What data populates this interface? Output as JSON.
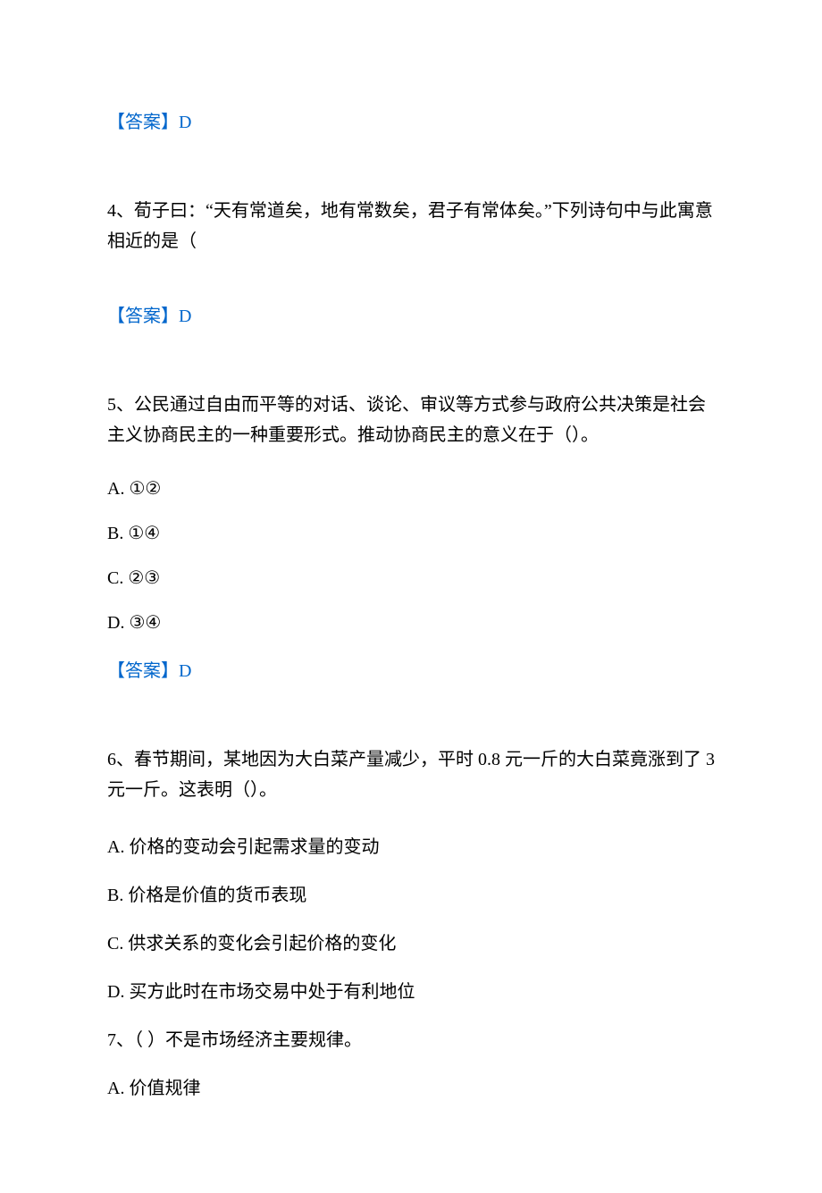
{
  "colors": {
    "answer_color": "#0066cc",
    "text_color": "#000000",
    "background": "#ffffff"
  },
  "typography": {
    "font_family": "SimSun",
    "font_size": 20,
    "line_height": 1.7
  },
  "answer3": {
    "label": "【答案】",
    "value": "D"
  },
  "question4": {
    "text": "4、荀子曰：“天有常道矣，地有常数矣，君子有常体矣。”下列诗句中与此寓意相近的是（"
  },
  "answer4": {
    "label": "【答案】",
    "value": "D"
  },
  "question5": {
    "text": "5、公民通过自由而平等的对话、谈论、审议等方式参与政府公共决策是社会主义协商民主的一种重要形式。推动协商民主的意义在于（）。",
    "options": {
      "a": "A. ①②",
      "b": "B. ①④",
      "c": "C. ②③",
      "d": "D. ③④"
    }
  },
  "answer5": {
    "label": "【答案】",
    "value": "D"
  },
  "question6": {
    "text": "6、春节期间，某地因为大白菜产量减少，平时 0.8 元一斤的大白菜竟涨到了 3 元一斤。这表明（）。",
    "options": {
      "a": "A. 价格的变动会引起需求量的变动",
      "b": "B. 价格是价值的货币表现",
      "c": "C. 供求关系的变化会引起价格的变化",
      "d": "D. 买方此时在市场交易中处于有利地位"
    }
  },
  "question7": {
    "text": "7、（ ）不是市场经济主要规律。",
    "options": {
      "a": "A. 价值规律"
    }
  }
}
